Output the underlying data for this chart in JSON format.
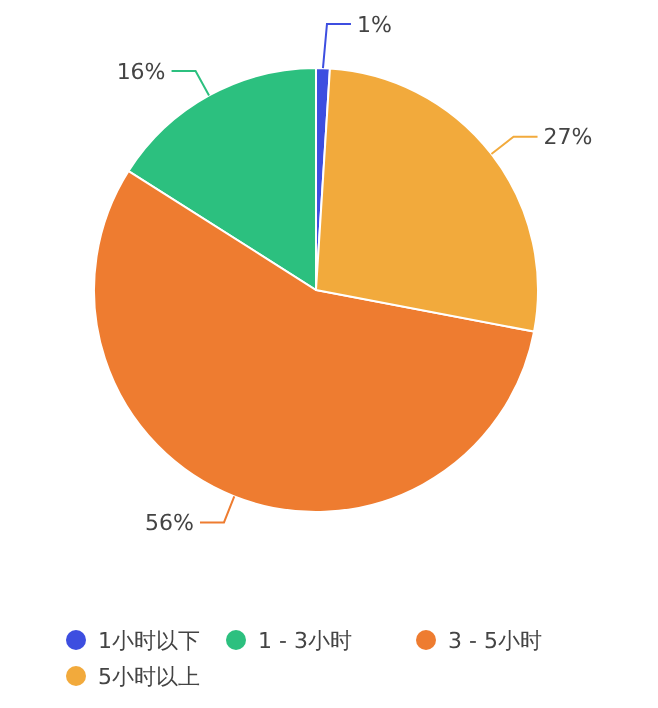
{
  "chart_data": {
    "type": "pie",
    "categories": [
      "1小时以下",
      "1 - 3小时",
      "3 - 5小时",
      "5小时以上"
    ],
    "values": [
      1,
      16,
      56,
      27
    ],
    "colors": [
      "#3d4ee0",
      "#2cc07f",
      "#ee7c30",
      "#f2aa3c"
    ],
    "value_labels": [
      "1%",
      "16%",
      "56%",
      "27%"
    ],
    "legend": "bottom"
  }
}
